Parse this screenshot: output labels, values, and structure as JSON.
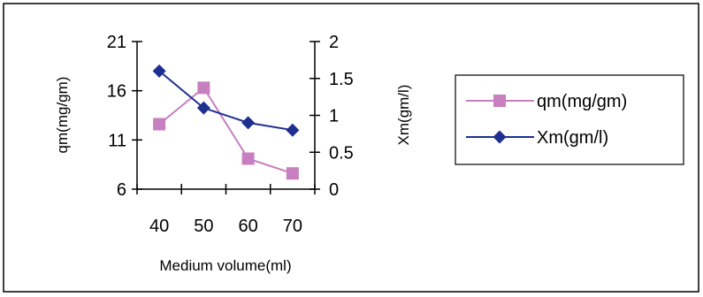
{
  "chart_data": {
    "type": "line",
    "title": "",
    "categories": [
      40,
      50,
      60,
      70
    ],
    "xlabel": "Medium volume(ml)",
    "xlim": [
      35,
      75
    ],
    "x_ticks": [
      "40",
      "50",
      "60",
      "70"
    ],
    "y_left": {
      "label": "qm(mg/gm)",
      "ylim": [
        6,
        21
      ],
      "ticks": [
        "6",
        "11",
        "16",
        "21"
      ]
    },
    "y_right": {
      "label": "Xm(gm/l)",
      "ylim": [
        0,
        2
      ],
      "ticks": [
        "0",
        "0.5",
        "1",
        "1.5",
        "2"
      ]
    },
    "grid": false,
    "legend_position": "right",
    "series": [
      {
        "name": "qm(mg/gm)",
        "axis": "left",
        "marker": "square",
        "color": "#c77fbf",
        "values": [
          12.6,
          16.3,
          9.1,
          7.6
        ]
      },
      {
        "name": "Xm(gm/l)",
        "axis": "right",
        "marker": "diamond",
        "color": "#1f2f8f",
        "values": [
          1.6,
          1.1,
          0.9,
          0.8
        ]
      }
    ]
  }
}
